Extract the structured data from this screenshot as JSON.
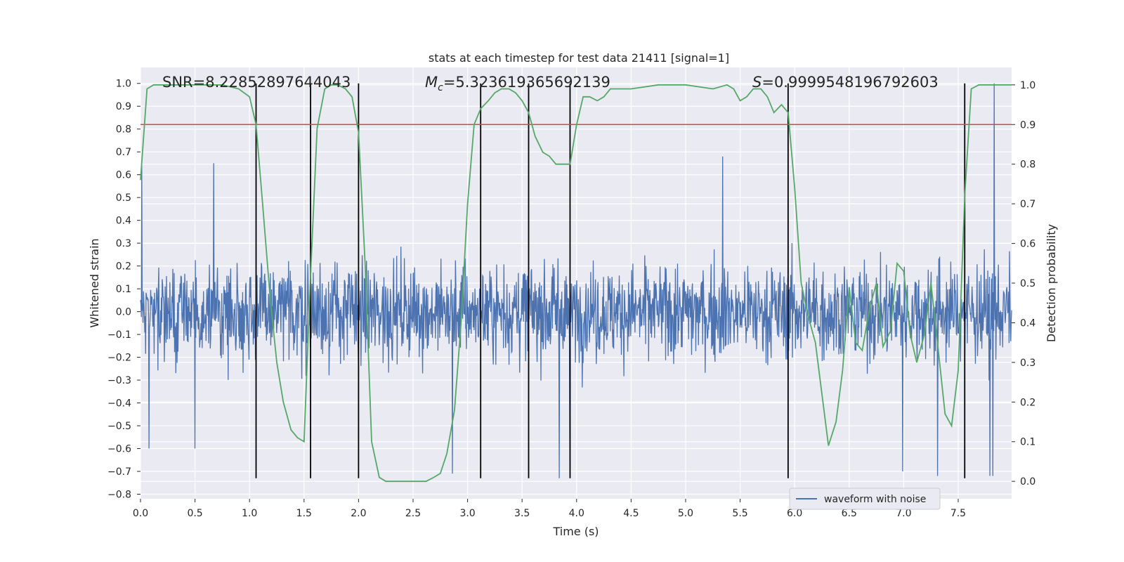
{
  "chart_data": {
    "type": "line",
    "title": "stats at each timestep for test data 21411 [signal=1]",
    "xlabel": "Time (s)",
    "ylabel": "Whitened strain",
    "ylabel_right": "Detection probability",
    "xlim": [
      0.0,
      7.99
    ],
    "ylim": [
      -0.82,
      1.07
    ],
    "ylim_right": [
      -0.044,
      1.044
    ],
    "x_ticks": [
      0.0,
      0.5,
      1.0,
      1.5,
      2.0,
      2.5,
      3.0,
      3.5,
      4.0,
      4.5,
      5.0,
      5.5,
      6.0,
      6.5,
      7.0,
      7.5
    ],
    "x_tick_labels": [
      "0.0",
      "0.5",
      "1.0",
      "1.5",
      "2.0",
      "2.5",
      "3.0",
      "3.5",
      "4.0",
      "4.5",
      "5.0",
      "5.5",
      "6.0",
      "6.5",
      "7.0",
      "7.5"
    ],
    "y_ticks": [
      1.0,
      0.9,
      0.8,
      0.7,
      0.6,
      0.5,
      0.4,
      0.3,
      0.2,
      0.1,
      0.0,
      -0.1,
      -0.2,
      -0.3,
      -0.4,
      -0.5,
      -0.6,
      -0.7,
      -0.8
    ],
    "y_tick_labels": [
      "1.0",
      "0.9",
      "0.8",
      "0.7",
      "0.6",
      "0.5",
      "0.4",
      "0.3",
      "0.2",
      "0.1",
      "0.0",
      "−0.1",
      "−0.2",
      "−0.3",
      "−0.4",
      "−0.5",
      "−0.6",
      "−0.7",
      "−0.8"
    ],
    "y_right_ticks": [
      1.0,
      0.9,
      0.8,
      0.7,
      0.6,
      0.5,
      0.4,
      0.3,
      0.2,
      0.1,
      0.0
    ],
    "y_right_tick_labels": [
      "1.0",
      "0.9",
      "0.8",
      "0.7",
      "0.6",
      "0.5",
      "0.4",
      "0.3",
      "0.2",
      "0.1",
      "0.0"
    ],
    "grid": true,
    "legend": {
      "position": "lower-right",
      "entries": [
        "waveform with noise"
      ]
    },
    "annotations": {
      "snr": "SNR=8.22852897644043",
      "mc_symbol": "M",
      "mc_sub": "c",
      "mc_value": "=5.323619365692139",
      "s_symbol": "S",
      "s_value": "=0.9999548196792603"
    },
    "threshold": {
      "value_right": 0.9,
      "color": "#c44e52"
    },
    "vertical_lines": [
      1.06,
      1.56,
      2.0,
      3.12,
      3.56,
      3.94,
      5.94,
      7.56
    ],
    "vline_range": [
      -0.73,
      1.0
    ],
    "waveform": {
      "name": "waveform with noise",
      "color": "#4c72b0",
      "n_samples": 2048,
      "typical_amplitude": 0.14,
      "notable_spikes": [
        {
          "t": 0.01,
          "v": 0.64
        },
        {
          "t": 0.67,
          "v": 0.65
        },
        {
          "t": 0.08,
          "v": -0.6
        },
        {
          "t": 0.5,
          "v": -0.6
        },
        {
          "t": 2.86,
          "v": -0.71
        },
        {
          "t": 3.84,
          "v": -0.73
        },
        {
          "t": 3.94,
          "v": -0.66
        },
        {
          "t": 5.34,
          "v": 0.68
        },
        {
          "t": 6.99,
          "v": -0.7
        },
        {
          "t": 7.31,
          "v": -0.72
        },
        {
          "t": 7.79,
          "v": -0.72
        },
        {
          "t": 7.83,
          "v": 1.0
        },
        {
          "t": 7.82,
          "v": -0.72
        }
      ]
    },
    "detection_probability": {
      "color": "#55a868",
      "x": [
        0.0,
        0.06,
        0.12,
        0.25,
        0.5,
        0.75,
        0.9,
        1.0,
        1.06,
        1.12,
        1.19,
        1.25,
        1.31,
        1.38,
        1.44,
        1.5,
        1.56,
        1.62,
        1.69,
        1.75,
        1.81,
        1.88,
        1.94,
        2.0,
        2.06,
        2.12,
        2.19,
        2.25,
        2.31,
        2.5,
        2.62,
        2.69,
        2.75,
        2.81,
        2.88,
        2.94,
        3.0,
        3.06,
        3.12,
        3.19,
        3.25,
        3.31,
        3.38,
        3.44,
        3.5,
        3.56,
        3.62,
        3.69,
        3.75,
        3.81,
        3.88,
        3.94,
        4.0,
        4.06,
        4.12,
        4.19,
        4.25,
        4.31,
        4.38,
        4.5,
        4.75,
        5.0,
        5.25,
        5.38,
        5.44,
        5.5,
        5.56,
        5.62,
        5.69,
        5.75,
        5.81,
        5.88,
        5.94,
        6.0,
        6.06,
        6.12,
        6.19,
        6.25,
        6.31,
        6.38,
        6.44,
        6.5,
        6.56,
        6.62,
        6.69,
        6.75,
        6.81,
        6.88,
        6.94,
        7.0,
        7.06,
        7.12,
        7.19,
        7.25,
        7.31,
        7.38,
        7.44,
        7.5,
        7.56,
        7.62,
        7.69,
        7.75,
        7.88,
        7.99
      ],
      "y": [
        0.76,
        0.99,
        1.0,
        1.0,
        1.0,
        1.0,
        0.99,
        0.97,
        0.9,
        0.7,
        0.46,
        0.3,
        0.2,
        0.13,
        0.11,
        0.1,
        0.52,
        0.89,
        0.99,
        1.0,
        1.0,
        0.99,
        0.97,
        0.88,
        0.55,
        0.1,
        0.01,
        0.0,
        0.0,
        0.0,
        0.0,
        0.01,
        0.02,
        0.07,
        0.18,
        0.4,
        0.7,
        0.9,
        0.94,
        0.96,
        0.98,
        0.99,
        0.99,
        0.98,
        0.96,
        0.93,
        0.87,
        0.83,
        0.82,
        0.8,
        0.8,
        0.8,
        0.9,
        0.97,
        0.97,
        0.96,
        0.97,
        0.99,
        0.99,
        0.99,
        1.0,
        1.0,
        0.99,
        1.0,
        0.99,
        0.96,
        0.97,
        0.99,
        0.99,
        0.97,
        0.93,
        0.95,
        0.93,
        0.74,
        0.5,
        0.42,
        0.35,
        0.22,
        0.09,
        0.15,
        0.28,
        0.49,
        0.35,
        0.33,
        0.44,
        0.5,
        0.34,
        0.38,
        0.55,
        0.53,
        0.37,
        0.3,
        0.37,
        0.5,
        0.35,
        0.17,
        0.14,
        0.28,
        0.72,
        0.99,
        1.0,
        1.0,
        1.0,
        1.0
      ]
    }
  }
}
